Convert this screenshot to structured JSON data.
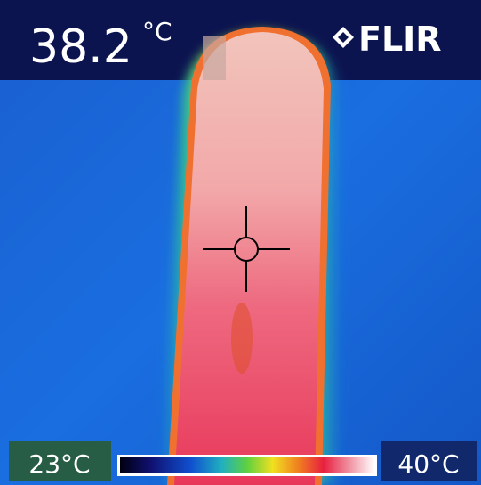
{
  "reading": {
    "value": "38.2",
    "unit": "°C"
  },
  "brand": "FLIR",
  "scale": {
    "min": "23°C",
    "max": "40°C"
  }
}
